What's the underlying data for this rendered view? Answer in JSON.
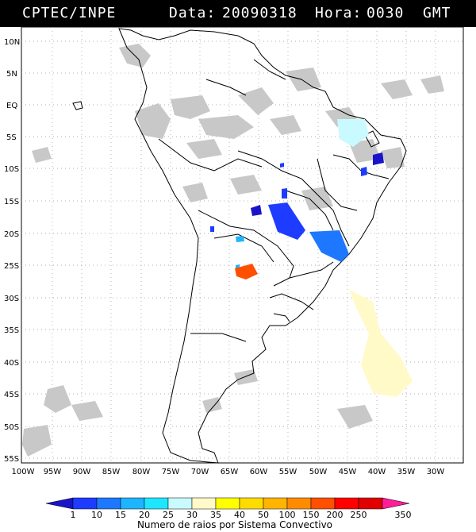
{
  "header": {
    "source": "CPTEC/INPE",
    "date_label": "Data:",
    "date_value": "20090318",
    "hour_label": "Hora:",
    "hour_value": "0030",
    "timezone": "GMT"
  },
  "map": {
    "lat_labels": [
      "10N",
      "5N",
      "EQ",
      "5S",
      "10S",
      "15S",
      "20S",
      "25S",
      "30S",
      "35S",
      "40S",
      "45S",
      "50S",
      "55S"
    ],
    "lon_labels": [
      "100W",
      "95W",
      "90W",
      "85W",
      "80W",
      "75W",
      "70W",
      "65W",
      "60W",
      "55W",
      "50W",
      "45W",
      "40W",
      "35W",
      "30W"
    ],
    "land_outline_color": "#000000",
    "cloud_color": "#c8c8c8",
    "grid_style": "dotted"
  },
  "colorbar": {
    "ticks": [
      "1",
      "10",
      "15",
      "20",
      "25",
      "30",
      "35",
      "40",
      "50",
      "100",
      "150",
      "200",
      "250",
      "350"
    ],
    "colors": [
      "#1a14c8",
      "#1e3cff",
      "#1e78ff",
      "#1eb4ff",
      "#1ee6ff",
      "#c8faff",
      "#fffac8",
      "#ffff00",
      "#ffdc00",
      "#ffb400",
      "#ff8c00",
      "#ff5000",
      "#ff0000",
      "#ff1e96"
    ],
    "title": "Numero de raios por Sistema Convectivo"
  }
}
